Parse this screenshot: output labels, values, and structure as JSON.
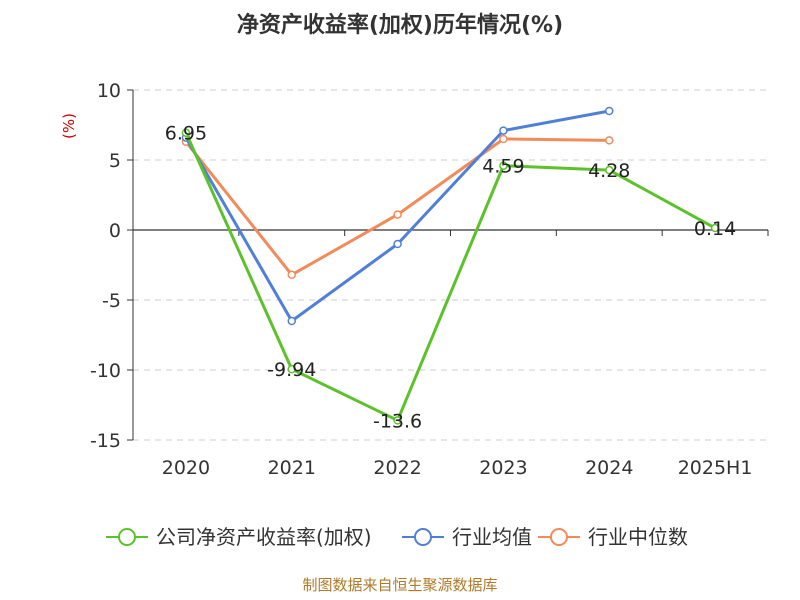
{
  "chart_data": {
    "type": "line",
    "title": "净资产收益率(加权)历年情况(%)",
    "ylabel": "(%)",
    "categories": [
      "2020",
      "2021",
      "2022",
      "2023",
      "2024",
      "2025H1"
    ],
    "ylim": [
      -15,
      10
    ],
    "yticks": [
      10,
      5,
      0,
      -5,
      -10,
      -15
    ],
    "ytick_labels": [
      "10",
      "5",
      "0",
      "-5",
      "-10",
      "-15"
    ],
    "grid": true,
    "legend_position": "bottom",
    "series": [
      {
        "name": "公司净资产收益率(加权)",
        "color": "#5cc22a",
        "values": [
          6.95,
          -9.94,
          -13.6,
          4.59,
          4.28,
          0.14
        ],
        "labels": [
          "6.95",
          "-9.94",
          "-13.6",
          "4.59",
          "4.28",
          "0.14"
        ]
      },
      {
        "name": "行业均值",
        "color": "#4f7fd8",
        "values": [
          6.6,
          -6.5,
          -1.0,
          7.1,
          8.5,
          null
        ]
      },
      {
        "name": "行业中位数",
        "color": "#f28a5a",
        "values": [
          6.3,
          -3.2,
          1.1,
          6.5,
          6.4,
          null
        ]
      }
    ]
  },
  "footer": {
    "source": "制图数据来自恒生聚源数据库"
  }
}
